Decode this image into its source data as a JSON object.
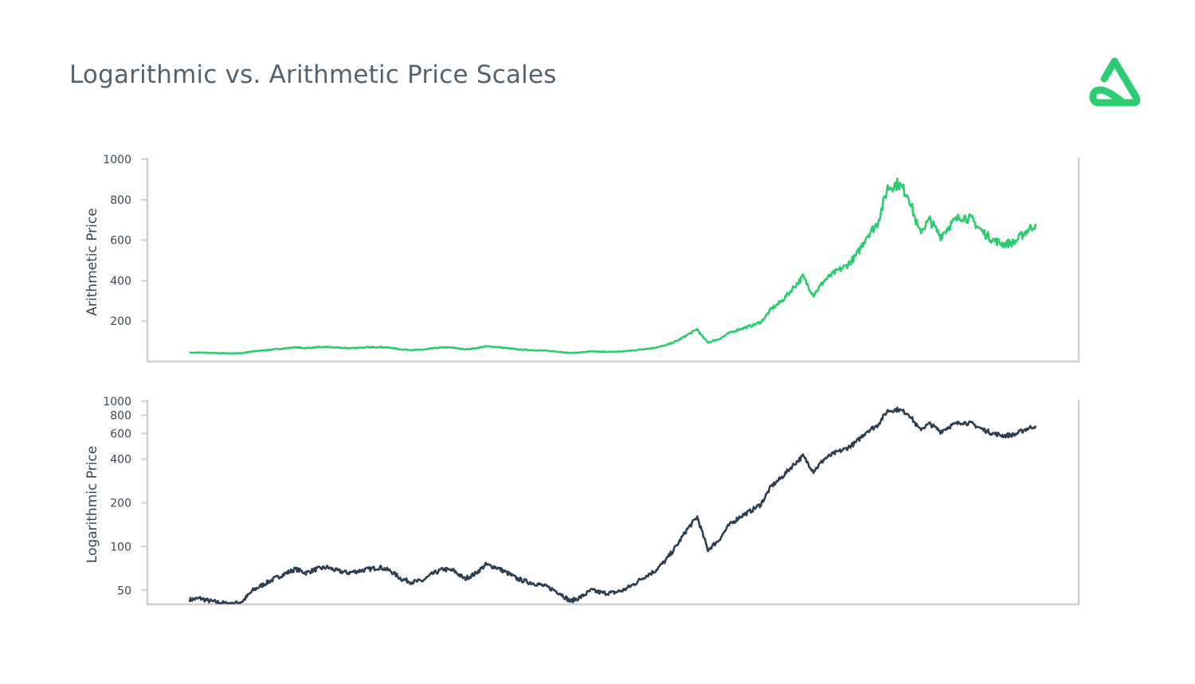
{
  "title": "Logarithmic vs. Arithmetic Price Scales",
  "logo_icon": "brand-logo-icon",
  "colors": {
    "title": "#556270",
    "arith_line": "#2ecc71",
    "log_line": "#2c3e50",
    "axis": "#cfcfcf",
    "logo": "#2ecc71"
  },
  "chart_data": [
    {
      "type": "line",
      "ylabel": "Arithmetic Price",
      "yscale": "linear",
      "ylim": [
        0,
        1000
      ],
      "yticks": [
        200,
        400,
        600,
        800,
        1000
      ],
      "ytick_labels": [
        "200",
        "400",
        "600",
        "800",
        "1000"
      ],
      "grid": false,
      "series": [
        {
          "values": [
            43,
            44,
            42,
            41,
            40,
            42,
            50,
            55,
            60,
            65,
            70,
            66,
            70,
            72,
            68,
            66,
            68,
            70,
            72,
            68,
            60,
            57,
            58,
            65,
            70,
            68,
            60,
            65,
            75,
            72,
            66,
            60,
            57,
            55,
            52,
            48,
            42,
            45,
            50,
            48,
            48,
            50,
            55,
            62,
            68,
            80,
            100,
            130,
            160,
            95,
            110,
            140,
            160,
            175,
            195,
            260,
            300,
            360,
            420,
            330,
            400,
            440,
            470,
            520,
            620,
            680,
            860,
            880,
            820,
            640,
            700,
            620,
            680,
            720,
            700,
            640,
            600,
            580,
            590,
            640,
            680
          ]
        }
      ]
    },
    {
      "type": "line",
      "ylabel": "Logarithmic Price",
      "yscale": "log",
      "ylim": [
        40,
        1000
      ],
      "yticks": [
        50,
        100,
        200,
        400,
        600,
        800,
        1000
      ],
      "ytick_labels": [
        "50",
        "100",
        "200",
        "400",
        "600",
        "800",
        "1000"
      ],
      "grid": false,
      "series": [
        {
          "values": [
            43,
            44,
            42,
            41,
            40,
            42,
            50,
            55,
            60,
            65,
            70,
            66,
            70,
            72,
            68,
            66,
            68,
            70,
            72,
            68,
            60,
            57,
            58,
            65,
            70,
            68,
            60,
            65,
            75,
            72,
            66,
            60,
            57,
            55,
            52,
            48,
            42,
            45,
            50,
            48,
            48,
            50,
            55,
            62,
            68,
            80,
            100,
            130,
            160,
            95,
            110,
            140,
            160,
            175,
            195,
            260,
            300,
            360,
            420,
            330,
            400,
            440,
            470,
            520,
            620,
            680,
            860,
            880,
            820,
            640,
            700,
            620,
            680,
            720,
            700,
            640,
            600,
            580,
            590,
            640,
            680
          ]
        }
      ]
    }
  ]
}
